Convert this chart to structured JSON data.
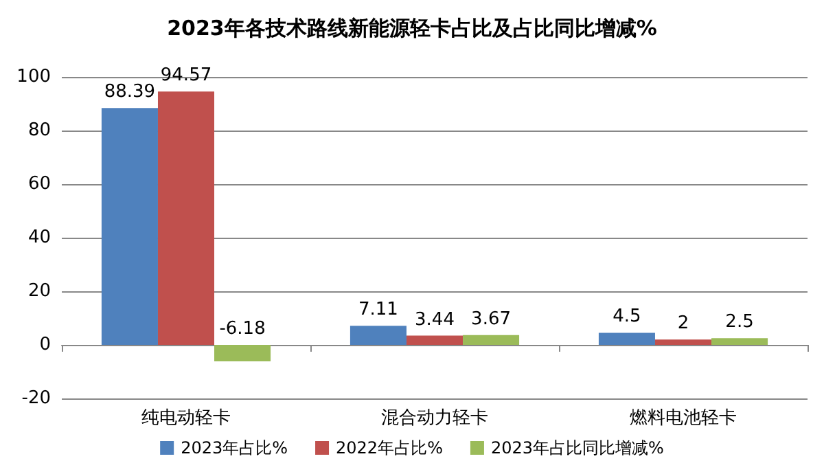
{
  "chart_data": {
    "type": "bar",
    "title": "2023年各技术路线新能源轻卡占比及占比同比增减%",
    "categories": [
      "纯电动轻卡",
      "混合动力轻卡",
      "燃料电池轻卡"
    ],
    "series": [
      {
        "name": "2023年占比%",
        "color": "#4f81bd",
        "values": [
          88.39,
          7.11,
          4.5
        ]
      },
      {
        "name": "2022年占比%",
        "color": "#c0504d",
        "values": [
          94.57,
          3.44,
          2
        ]
      },
      {
        "name": "2023年占比同比增减%",
        "color": "#9bbb59",
        "values": [
          -6.18,
          3.67,
          2.5
        ]
      }
    ],
    "ylim": [
      -20,
      100
    ],
    "yticks": [
      -20,
      0,
      20,
      40,
      60,
      80,
      100
    ],
    "grid": "y",
    "legend": "bottom",
    "data_labels": true
  }
}
